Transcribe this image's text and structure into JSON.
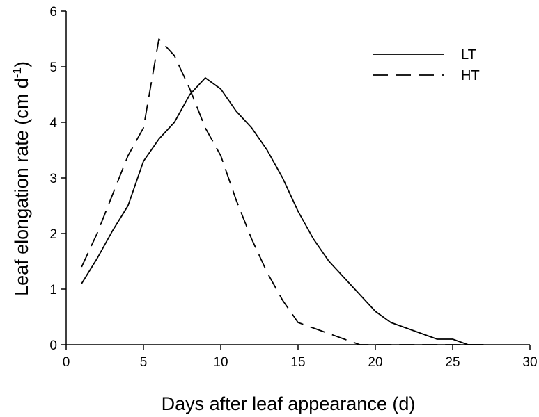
{
  "chart_data": {
    "type": "line",
    "title": "",
    "xlabel": "Days after leaf appearance (d)",
    "ylabel_main": "Leaf elongation rate (cm d",
    "ylabel_sup": "-1",
    "ylabel_close": ")",
    "xlim": [
      0,
      30
    ],
    "ylim": [
      0,
      6
    ],
    "x_ticks": [
      "0",
      "5",
      "10",
      "15",
      "20",
      "25",
      "30"
    ],
    "y_ticks": [
      "0",
      "1",
      "2",
      "3",
      "4",
      "5",
      "6"
    ],
    "grid": false,
    "legend_position": "top-right",
    "series": [
      {
        "name": "LT",
        "style": "solid",
        "color": "#000000",
        "x": [
          1,
          2,
          3,
          4,
          5,
          6,
          7,
          8,
          9,
          10,
          11,
          12,
          13,
          14,
          15,
          16,
          17,
          18,
          19,
          20,
          21,
          22,
          23,
          24,
          25,
          26,
          27
        ],
        "y": [
          1.1,
          1.55,
          2.05,
          2.5,
          3.3,
          3.7,
          4.0,
          4.5,
          4.8,
          4.6,
          4.2,
          3.9,
          3.5,
          3.0,
          2.4,
          1.9,
          1.5,
          1.2,
          0.9,
          0.6,
          0.4,
          0.3,
          0.2,
          0.1,
          0.1,
          0.0,
          0.0
        ]
      },
      {
        "name": "HT",
        "style": "dashed",
        "color": "#000000",
        "x": [
          1,
          2,
          3,
          4,
          5,
          6,
          7,
          8,
          9,
          10,
          11,
          12,
          13,
          14,
          15,
          16,
          17,
          18,
          19,
          20,
          21,
          22,
          23,
          24,
          25,
          26,
          27
        ],
        "y": [
          1.4,
          2.0,
          2.7,
          3.4,
          3.9,
          5.5,
          5.2,
          4.6,
          3.9,
          3.4,
          2.6,
          1.9,
          1.3,
          0.8,
          0.4,
          0.3,
          0.2,
          0.1,
          0.0,
          0.0,
          0.0,
          0.0,
          0.0,
          0.0,
          0.0,
          0.0,
          0.0
        ]
      }
    ]
  }
}
